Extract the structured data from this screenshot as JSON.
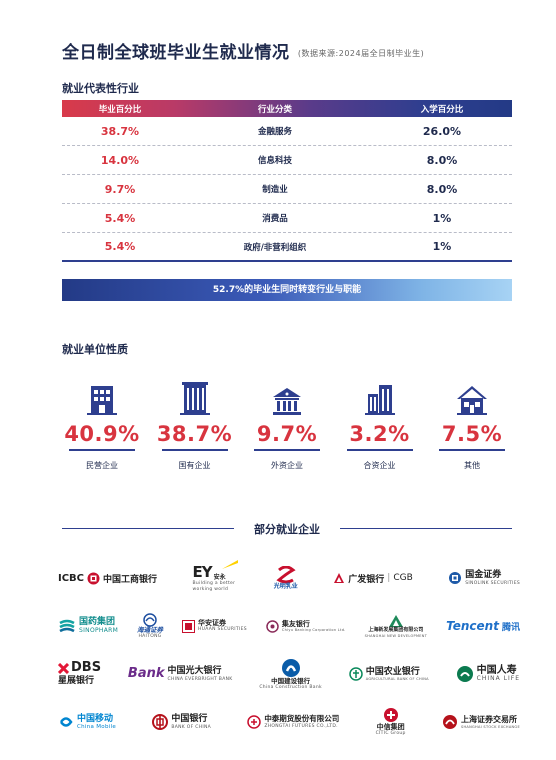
{
  "page": {
    "title": "全日制全球班毕业生就业情况",
    "source_note": "(数据来源:2024届全日制毕业生)"
  },
  "industry": {
    "heading": "就业代表性行业",
    "columns": [
      "毕业百分比",
      "行业分类",
      "入学百分比"
    ],
    "rows": [
      {
        "grad": "38.7%",
        "industry": "金融服务",
        "entry": "26.0%"
      },
      {
        "grad": "14.0%",
        "industry": "信息科技",
        "entry": "8.0%"
      },
      {
        "grad": "9.7%",
        "industry": "制造业",
        "entry": "8.0%"
      },
      {
        "grad": "5.4%",
        "industry": "消费品",
        "entry": "1%"
      },
      {
        "grad": "5.4%",
        "industry": "政府/非营利组织",
        "entry": "1%"
      }
    ],
    "banner": "52.7%的毕业生同时转变行业与职能"
  },
  "employer_type": {
    "heading": "就业单位性质",
    "items": [
      {
        "pct": "40.9%",
        "label": "民营企业",
        "icon": "private-building-icon"
      },
      {
        "pct": "38.7%",
        "label": "国有企业",
        "icon": "state-building-icon"
      },
      {
        "pct": "9.7%",
        "label": "外资企业",
        "icon": "bank-building-icon"
      },
      {
        "pct": "3.2%",
        "label": "合资企业",
        "icon": "office-towers-icon"
      },
      {
        "pct": "7.5%",
        "label": "其他",
        "icon": "house-icon"
      }
    ]
  },
  "employers": {
    "heading": "部分就业企业",
    "logos": {
      "icbc": {
        "en": "ICBC",
        "cn": "中国工商银行"
      },
      "ey": {
        "mark": "EY",
        "cn": "安永",
        "tag1": "Building a better",
        "tag2": "working world"
      },
      "bright": {
        "cn": "光明乳业"
      },
      "cgb": {
        "cn": "广发银行",
        "en": "CGB"
      },
      "sinolink": {
        "cn": "国金证券",
        "en": "SINOLINK SECURITIES"
      },
      "sinopharm": {
        "cn": "国药集团",
        "en": "SINOPHARM"
      },
      "haitong": {
        "cn": "海通证券",
        "en": "HAITONG"
      },
      "huaan": {
        "cn": "华安证券",
        "en": "HUAAN SECURITIES"
      },
      "jiayou": {
        "cn": "集友银行",
        "en": "Chiyu Banking Corporation Ltd."
      },
      "shfs": {
        "cn": "上海新发展集团有限公司",
        "en": "SHANGHAI NEW DEVELOPMENT"
      },
      "tencent": {
        "en": "Tencent",
        "cn": "腾讯"
      },
      "dbs": {
        "en": "DBS",
        "cn": "星展银行"
      },
      "ceb": {
        "mark": "Bank",
        "cn": "中国光大银行",
        "en": "CHINA EVERBRIGHT BANK"
      },
      "ccb": {
        "cn": "中国建设银行",
        "en": "China Construction Bank"
      },
      "abc": {
        "cn": "中国农业银行",
        "en": "AGRICULTURAL BANK OF CHINA"
      },
      "chinalife": {
        "cn": "中国人寿",
        "en": "CHINA LIFE"
      },
      "cmobile": {
        "cn": "中国移动",
        "en": "China Mobile"
      },
      "boc": {
        "cn": "中国银行",
        "en": "BANK OF CHINA"
      },
      "zhongtai": {
        "cn": "中泰期货股份有限公司",
        "en": "ZHONGTAI FUTURES CO.,LTD."
      },
      "citic": {
        "cn": "中信集团",
        "en": "CITIC Group"
      },
      "sse": {
        "cn": "上海证券交易所",
        "en": "SHANGHAI STOCK EXCHANGE"
      }
    }
  },
  "colors": {
    "navy": "#1f2a4d",
    "red": "#d8343f",
    "blue": "#2e3f8f"
  }
}
